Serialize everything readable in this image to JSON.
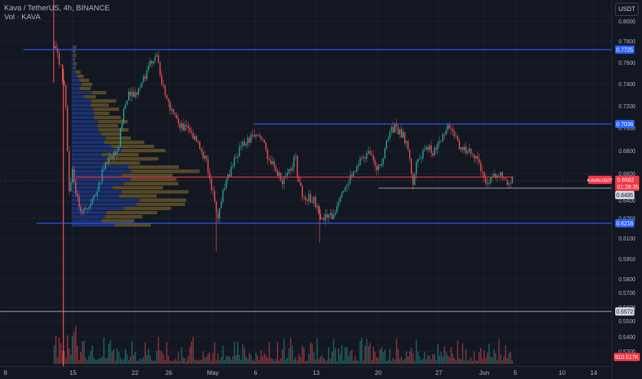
{
  "header": {
    "title": "Kava / TetherUS, 4h, BINANCE",
    "volume_label": "Vol · KAVA"
  },
  "currency_button": "USDT",
  "colors": {
    "background": "#131722",
    "up": "#26a69a",
    "down": "#ef5350",
    "level_line": "#2962ff",
    "price_line": "#f23645",
    "vp_up": "#1e3a8a",
    "vp_down": "#6b5a2a"
  },
  "price_axis": {
    "ticks": [
      "0.8000",
      "0.7800",
      "0.7600",
      "0.7400",
      "0.7200",
      "0.7000",
      "0.6800",
      "0.6600",
      "0.6400",
      "0.6250",
      "0.6100",
      "0.5950",
      "0.5800",
      "0.5700",
      "0.5600",
      "0.5500",
      "0.5400",
      "0.5300"
    ]
  },
  "levels": {
    "l1": "0.7725",
    "l2": "0.7036",
    "l3": "0.6216",
    "l4": "0.5572",
    "support": "0.6495"
  },
  "last_price": {
    "symbol": "KAVAUSDT",
    "price": "0.6562",
    "countdown": "01:28:35"
  },
  "volume_value": "910.517K",
  "time_axis": [
    "8",
    "15",
    "22",
    "26",
    "May",
    "6",
    "13",
    "20",
    "27",
    "Jun",
    "5",
    "10",
    "14"
  ]
}
